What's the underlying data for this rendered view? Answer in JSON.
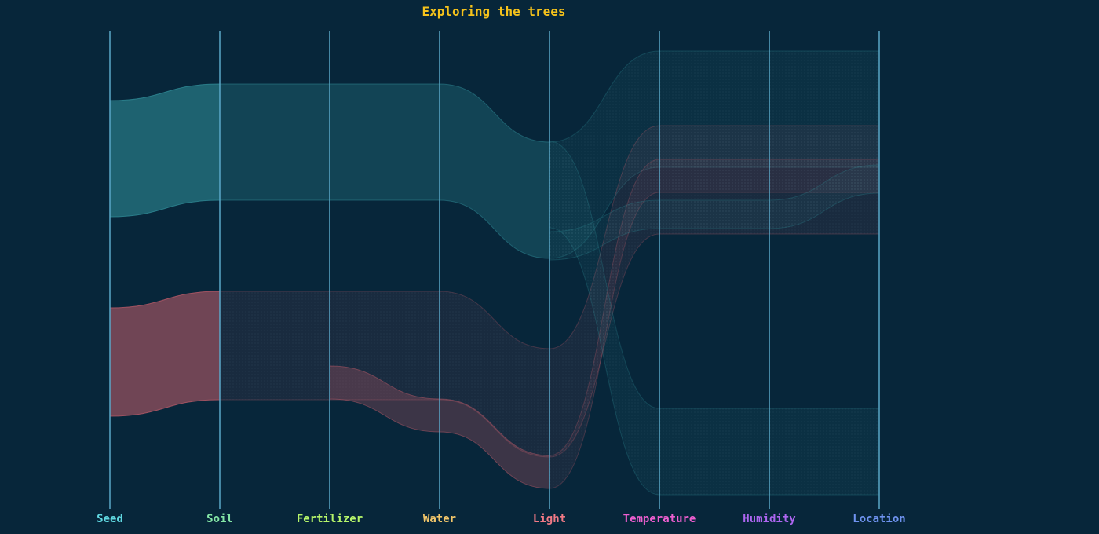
{
  "chart_data": {
    "type": "parallel-sets",
    "title": "Exploring the trees",
    "axes": [
      {
        "name": "Seed",
        "color": "#5fd7e0"
      },
      {
        "name": "Soil",
        "color": "#84e6a6"
      },
      {
        "name": "Fertilizer",
        "color": "#b6f56a"
      },
      {
        "name": "Water",
        "color": "#f2c66a"
      },
      {
        "name": "Light",
        "color": "#f27a86"
      },
      {
        "name": "Temperature",
        "color": "#ee5fd0"
      },
      {
        "name": "Humidity",
        "color": "#ad66f0"
      },
      {
        "name": "Location",
        "color": "#6f93f0"
      }
    ],
    "groups": [
      {
        "color": "#2f8a95"
      },
      {
        "color": "#b85a68"
      }
    ],
    "ribbons": [
      {
        "group": 0,
        "thickness": 148,
        "path": [
          128,
          107,
          107,
          107,
          181,
          65,
          65,
          65
        ],
        "fade": 5
      },
      {
        "group": 1,
        "thickness": 138,
        "path": [
          392,
          371,
          371,
          371,
          444,
          160,
          160,
          160
        ],
        "fade": 2
      },
      {
        "group": 1,
        "thickness": 42,
        "path": [
          null,
          null,
          466,
          508,
          580,
          203,
          203,
          203
        ],
        "fade": 5
      },
      {
        "group": 0,
        "thickness": 36,
        "path": [
          null,
          null,
          null,
          null,
          295,
          255,
          255,
          210
        ],
        "fade": 5
      },
      {
        "group": 0,
        "thickness": 110,
        "path": [
          null,
          null,
          null,
          null,
          180,
          520,
          520,
          520
        ],
        "fade": 5
      }
    ]
  },
  "colors": {
    "background": "#07263a",
    "axis_line": "#5aa7c8",
    "title": "#f5c21b"
  }
}
